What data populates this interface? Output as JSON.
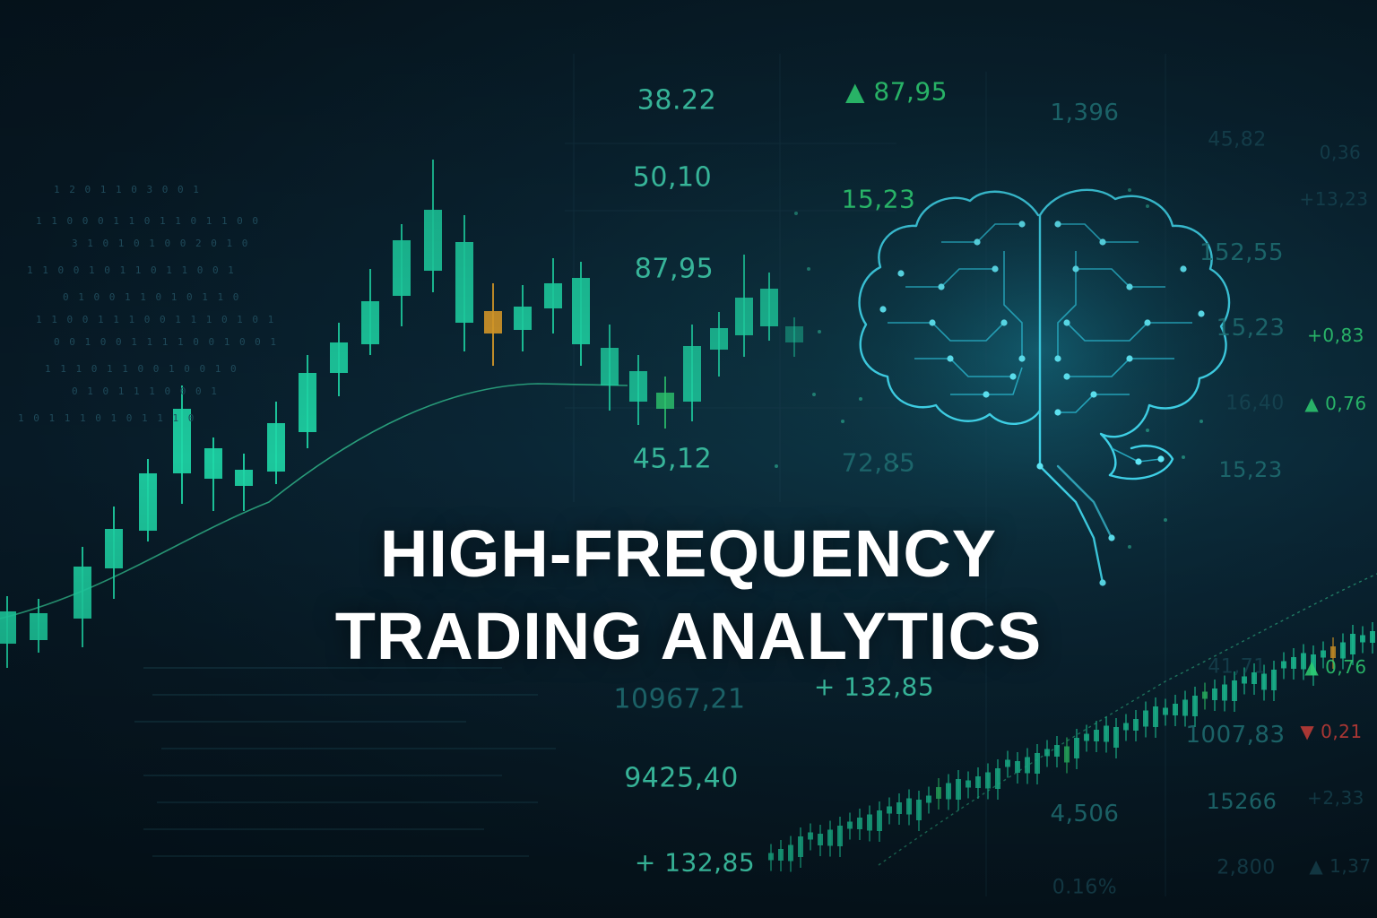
{
  "headline": {
    "line1": "HIGH-FREQUENCY",
    "line2": "TRADING ANALYTICS"
  },
  "colors": {
    "background": "#071a26",
    "candle_up": "#1fd8a8",
    "candle_highlight": "#e0a02a",
    "candle_green": "#2ecc71",
    "trend_line": "#2fb58a",
    "brain": "#3fd2e8",
    "ticker_text": "#2fb89a",
    "ticker_dim": "#1b5a66",
    "up_arrow": "#2ecc71",
    "down_arrow": "#e0413a"
  },
  "icons": [
    "brain-circuit-icon",
    "up-arrow-icon",
    "down-arrow-icon"
  ],
  "tickers": [
    {
      "text": "38.22",
      "style": "mid"
    },
    {
      "text": "50,10",
      "style": "mid"
    },
    {
      "text": "87,95",
      "style": "mid"
    },
    {
      "text": "45,12",
      "style": "mid"
    },
    {
      "text": "▲ 87,95",
      "style": "green"
    },
    {
      "text": "15,23",
      "style": "green"
    },
    {
      "text": "72,85",
      "style": "dim"
    },
    {
      "text": "1,396",
      "style": "dim"
    },
    {
      "text": "45,82",
      "style": "faint"
    },
    {
      "text": "152,55",
      "style": "dim"
    },
    {
      "text": "15,23",
      "style": "dim"
    },
    {
      "text": "16,40",
      "style": "faint"
    },
    {
      "text": "15,23",
      "style": "dim"
    },
    {
      "text": "+ 132,85",
      "style": "mid"
    },
    {
      "text": "10967,21",
      "style": "dim"
    },
    {
      "text": "9425,40",
      "style": "mid"
    },
    {
      "text": "+ 132,85",
      "style": "mid"
    },
    {
      "text": "41,71",
      "style": "faint"
    },
    {
      "text": "1007,83",
      "style": "dim"
    },
    {
      "text": "15266",
      "style": "dim"
    },
    {
      "text": "4,506",
      "style": "dim"
    },
    {
      "text": "2,800",
      "style": "faint"
    },
    {
      "text": "0.16%",
      "style": "faint"
    },
    {
      "text": "0,36",
      "style": "faint"
    },
    {
      "text": "+13,23",
      "style": "faint"
    },
    {
      "text": "+0,83",
      "style": "green"
    },
    {
      "text": "▲ 0,76",
      "style": "green"
    },
    {
      "text": "▲ 0,76",
      "style": "green"
    },
    {
      "text": "▼ 0,21",
      "style": "red"
    },
    {
      "text": "+2,33",
      "style": "faint"
    },
    {
      "text": "▲ 1,37",
      "style": "faint"
    }
  ],
  "code_lines": [
    "1 2 0 1 1 0 3 0 0 1",
    "1 1 0 0 0 1 1 0 1 1 0 1 1 0 0",
    "3 1 0 1 0 1 0 0 2 0 1 0",
    "1 1 0 0 1 0 1 1 0 1 1 0 0 1",
    "0 1 0 0 1 1 0 1 0 1 1 0",
    "1 1 0 0 1 1 1 0 0 1 1 1 0 1 0 1",
    "0 0 1 0 0 1 1 1 1 0 0 1 0 0 1",
    "1 1 1 0 1 1 0 0 1 0 0 1 0",
    "0 1 0 1 1 1 0 0 0 1",
    "1 0 1 1 1 0 1 0 1 1 1 0"
  ]
}
